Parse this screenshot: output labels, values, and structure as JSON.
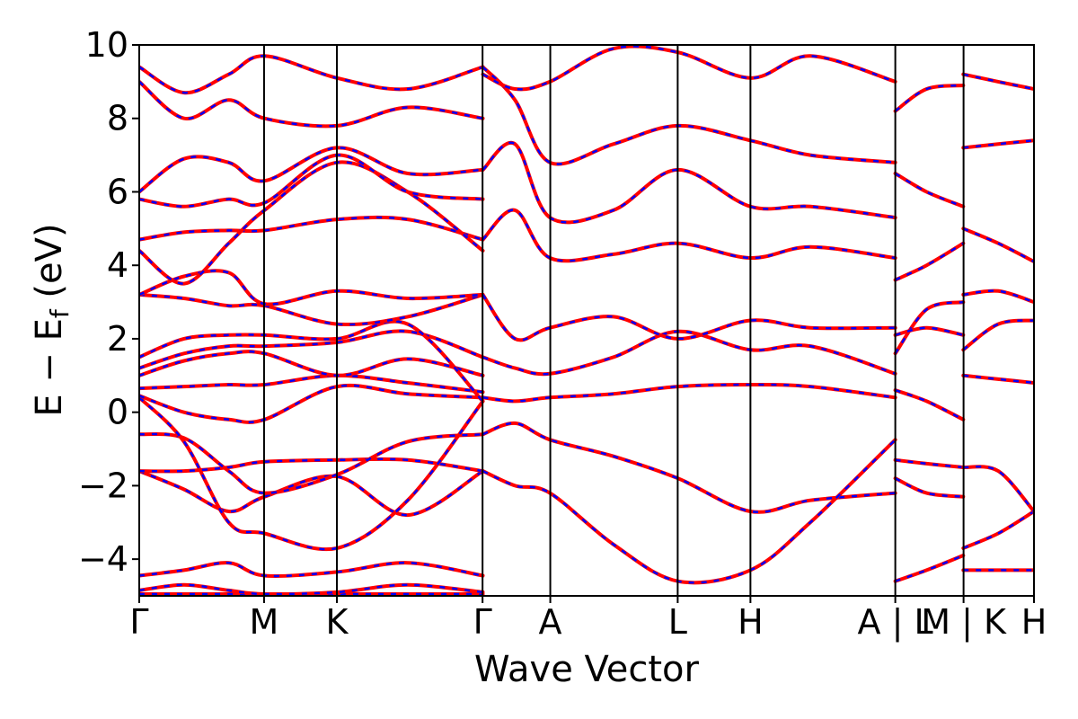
{
  "chart_data": {
    "type": "line",
    "xlabel": "Wave Vector",
    "ylabel": "E − E",
    "ylabel_sub": "f",
    "ylabel_unit": " (eV)",
    "ylim": [
      -5,
      10
    ],
    "yticks": [
      10,
      8,
      6,
      4,
      2,
      0,
      -2,
      -4
    ],
    "ytick_labels": [
      "10",
      "8",
      "6",
      "4",
      "2",
      "0",
      "−2",
      "−4"
    ],
    "xlim": [
      0,
      1
    ],
    "kpoints": [
      {
        "label": "Γ",
        "x": 0.0
      },
      {
        "label": "M",
        "x": 0.1395
      },
      {
        "label": "K",
        "x": 0.2209
      },
      {
        "label": "Γ",
        "x": 0.3837
      },
      {
        "label": "A",
        "x": 0.4594
      },
      {
        "label": "L",
        "x": 0.6018
      },
      {
        "label": "H",
        "x": 0.6831
      },
      {
        "label": "A | L",
        "x": 0.845
      },
      {
        "label": "M | K",
        "x": 0.9213
      },
      {
        "label": "H",
        "x": 1.0
      }
    ],
    "grid": false,
    "legend": "none",
    "colors": {
      "series_a": "#ff0000",
      "series_b": "#0000ff"
    },
    "series": [
      {
        "style": "red-solid-with-blue-dashed-overlay",
        "segments": [
          {
            "x": [
              0,
              0.14,
              0.221,
              0.384
            ],
            "y": [
              -4.95,
              -4.95,
              -4.95,
              -4.95
            ]
          },
          {
            "x": [
              0,
              0.05,
              0.1,
              0.14,
              0.221,
              0.3,
              0.384
            ],
            "y": [
              -4.85,
              -4.7,
              -4.85,
              -4.95,
              -4.9,
              -4.7,
              -4.9
            ]
          },
          {
            "x": [
              0,
              0.05,
              0.1,
              0.14,
              0.221,
              0.3,
              0.384
            ],
            "y": [
              -4.45,
              -4.3,
              -4.1,
              -4.45,
              -4.35,
              -4.1,
              -4.45
            ]
          },
          {
            "x": [
              0,
              0.05,
              0.1,
              0.14,
              0.221,
              0.3,
              0.384
            ],
            "y": [
              -1.6,
              -2.1,
              -2.7,
              -2.3,
              -1.75,
              -2.8,
              -1.6
            ]
          },
          {
            "x": [
              0,
              0.05,
              0.1,
              0.14,
              0.221,
              0.3,
              0.384
            ],
            "y": [
              -1.6,
              -1.6,
              -1.5,
              -1.35,
              -1.3,
              -1.3,
              -1.6
            ]
          },
          {
            "x": [
              0,
              0.05,
              0.1,
              0.14,
              0.221,
              0.3,
              0.384
            ],
            "y": [
              -0.6,
              -0.7,
              -1.6,
              -2.2,
              -1.7,
              -0.8,
              -0.6
            ]
          },
          {
            "x": [
              0,
              0.05,
              0.1,
              0.14,
              0.221,
              0.3,
              0.384
            ],
            "y": [
              0.4,
              -0.8,
              -3.0,
              -3.3,
              -3.7,
              -2.4,
              0.3
            ]
          },
          {
            "x": [
              0,
              0.05,
              0.1,
              0.14,
              0.221,
              0.3,
              0.384
            ],
            "y": [
              0.45,
              0.0,
              -0.2,
              -0.2,
              0.7,
              0.5,
              0.4
            ]
          },
          {
            "x": [
              0,
              0.05,
              0.1,
              0.14,
              0.221,
              0.3,
              0.384
            ],
            "y": [
              0.65,
              0.7,
              0.75,
              0.75,
              1.0,
              0.8,
              0.55
            ]
          },
          {
            "x": [
              0,
              0.05,
              0.1,
              0.14,
              0.221,
              0.3,
              0.384
            ],
            "y": [
              1.0,
              1.4,
              1.6,
              1.6,
              1.0,
              1.45,
              1.0
            ]
          },
          {
            "x": [
              0,
              0.05,
              0.1,
              0.14,
              0.221,
              0.3,
              0.384
            ],
            "y": [
              1.2,
              1.6,
              1.8,
              1.8,
              1.9,
              2.2,
              1.5
            ]
          },
          {
            "x": [
              0,
              0.05,
              0.1,
              0.14,
              0.221,
              0.3,
              0.384
            ],
            "y": [
              1.5,
              2.0,
              2.1,
              2.1,
              2.0,
              2.4,
              0.3
            ]
          },
          {
            "x": [
              0,
              0.05,
              0.1,
              0.14,
              0.221,
              0.3,
              0.384
            ],
            "y": [
              3.2,
              3.1,
              2.9,
              2.9,
              2.4,
              2.6,
              3.2
            ]
          },
          {
            "x": [
              0,
              0.05,
              0.1,
              0.14,
              0.221,
              0.3,
              0.384
            ],
            "y": [
              3.2,
              3.7,
              3.8,
              2.95,
              3.3,
              3.1,
              3.2
            ]
          },
          {
            "x": [
              0,
              0.05,
              0.1,
              0.14,
              0.221,
              0.3,
              0.384
            ],
            "y": [
              4.7,
              4.9,
              4.95,
              4.95,
              5.25,
              5.25,
              4.7
            ]
          },
          {
            "x": [
              0,
              0.05,
              0.1,
              0.14,
              0.221,
              0.3,
              0.384
            ],
            "y": [
              4.4,
              3.5,
              4.6,
              5.5,
              6.8,
              6.0,
              4.4
            ]
          },
          {
            "x": [
              0,
              0.05,
              0.1,
              0.14,
              0.221,
              0.3,
              0.384
            ],
            "y": [
              5.8,
              5.6,
              5.8,
              5.7,
              7.0,
              6.0,
              5.8
            ]
          },
          {
            "x": [
              0,
              0.05,
              0.1,
              0.14,
              0.221,
              0.3,
              0.384
            ],
            "y": [
              6.0,
              6.9,
              6.8,
              6.3,
              7.2,
              6.5,
              6.6
            ]
          },
          {
            "x": [
              0,
              0.05,
              0.1,
              0.14,
              0.221,
              0.3,
              0.384
            ],
            "y": [
              9.0,
              8.0,
              8.5,
              8.0,
              7.8,
              8.3,
              8.0
            ]
          },
          {
            "x": [
              0,
              0.05,
              0.1,
              0.14,
              0.221,
              0.3,
              0.384
            ],
            "y": [
              9.4,
              8.7,
              9.2,
              9.7,
              9.1,
              8.8,
              9.4
            ]
          },
          {
            "x": [
              0.384,
              0.42,
              0.459,
              0.53,
              0.602,
              0.683,
              0.75,
              0.845
            ],
            "y": [
              -0.6,
              -0.3,
              -0.75,
              -1.2,
              -1.8,
              -2.7,
              -2.4,
              -2.2
            ]
          },
          {
            "x": [
              0.384,
              0.42,
              0.459,
              0.53,
              0.602,
              0.683,
              0.75,
              0.845
            ],
            "y": [
              -1.6,
              -2.0,
              -2.2,
              -3.6,
              -4.6,
              -4.3,
              -3.0,
              -0.75
            ]
          },
          {
            "x": [
              0.384,
              0.42,
              0.459,
              0.53,
              0.602,
              0.683,
              0.75,
              0.845
            ],
            "y": [
              0.4,
              0.3,
              0.4,
              0.5,
              0.7,
              0.75,
              0.7,
              0.4
            ]
          },
          {
            "x": [
              0.384,
              0.42,
              0.459,
              0.53,
              0.602,
              0.683,
              0.75,
              0.845
            ],
            "y": [
              1.5,
              1.2,
              1.05,
              1.5,
              2.2,
              1.7,
              1.8,
              1.05
            ]
          },
          {
            "x": [
              0.384,
              0.42,
              0.459,
              0.53,
              0.602,
              0.683,
              0.75,
              0.845
            ],
            "y": [
              3.2,
              2.0,
              2.3,
              2.6,
              2.0,
              2.5,
              2.3,
              2.3
            ]
          },
          {
            "x": [
              0.384,
              0.42,
              0.459,
              0.53,
              0.602,
              0.683,
              0.75,
              0.845
            ],
            "y": [
              4.7,
              5.5,
              4.2,
              4.3,
              4.6,
              4.2,
              4.5,
              4.2
            ]
          },
          {
            "x": [
              0.384,
              0.42,
              0.459,
              0.53,
              0.602,
              0.683,
              0.75,
              0.845
            ],
            "y": [
              6.6,
              7.3,
              5.3,
              5.5,
              6.6,
              5.6,
              5.6,
              5.3
            ]
          },
          {
            "x": [
              0.384,
              0.42,
              0.459,
              0.53,
              0.602,
              0.683,
              0.75,
              0.845
            ],
            "y": [
              9.4,
              8.5,
              6.8,
              7.3,
              7.8,
              7.4,
              7.0,
              6.8
            ]
          },
          {
            "x": [
              0.384,
              0.42,
              0.459,
              0.53,
              0.602,
              0.683,
              0.75,
              0.845
            ],
            "y": [
              9.2,
              8.8,
              9.0,
              9.9,
              9.8,
              9.1,
              9.7,
              9.0
            ]
          },
          {
            "x": [
              0.845,
              0.88,
              0.921
            ],
            "y": [
              -4.6,
              -4.3,
              -3.9
            ]
          },
          {
            "x": [
              0.845,
              0.88,
              0.921
            ],
            "y": [
              -1.8,
              -2.2,
              -2.3
            ]
          },
          {
            "x": [
              0.845,
              0.88,
              0.921
            ],
            "y": [
              -1.3,
              -1.4,
              -1.5
            ]
          },
          {
            "x": [
              0.845,
              0.88,
              0.921
            ],
            "y": [
              0.6,
              0.3,
              -0.2
            ]
          },
          {
            "x": [
              0.845,
              0.88,
              0.921
            ],
            "y": [
              1.6,
              2.8,
              3.0
            ]
          },
          {
            "x": [
              0.845,
              0.88,
              0.921
            ],
            "y": [
              2.1,
              2.3,
              2.1
            ]
          },
          {
            "x": [
              0.845,
              0.88,
              0.921
            ],
            "y": [
              3.6,
              4.0,
              4.6
            ]
          },
          {
            "x": [
              0.845,
              0.88,
              0.921
            ],
            "y": [
              6.5,
              6.0,
              5.6
            ]
          },
          {
            "x": [
              0.845,
              0.88,
              0.921
            ],
            "y": [
              8.2,
              8.8,
              8.9
            ]
          },
          {
            "x": [
              0.921,
              0.96,
              1.0
            ],
            "y": [
              -4.3,
              -4.3,
              -4.3
            ]
          },
          {
            "x": [
              0.921,
              0.96,
              1.0
            ],
            "y": [
              -3.7,
              -3.3,
              -2.7
            ]
          },
          {
            "x": [
              0.921,
              0.96,
              1.0
            ],
            "y": [
              -1.5,
              -1.6,
              -2.7
            ]
          },
          {
            "x": [
              0.921,
              0.96,
              1.0
            ],
            "y": [
              1.0,
              0.9,
              0.8
            ]
          },
          {
            "x": [
              0.921,
              0.96,
              1.0
            ],
            "y": [
              1.7,
              2.4,
              2.5
            ]
          },
          {
            "x": [
              0.921,
              0.96,
              1.0
            ],
            "y": [
              3.2,
              3.3,
              3.0
            ]
          },
          {
            "x": [
              0.921,
              0.96,
              1.0
            ],
            "y": [
              5.0,
              4.6,
              4.1
            ]
          },
          {
            "x": [
              0.921,
              0.96,
              1.0
            ],
            "y": [
              7.2,
              7.3,
              7.4
            ]
          },
          {
            "x": [
              0.921,
              0.96,
              1.0
            ],
            "y": [
              9.2,
              9.0,
              8.8
            ]
          }
        ]
      }
    ]
  }
}
